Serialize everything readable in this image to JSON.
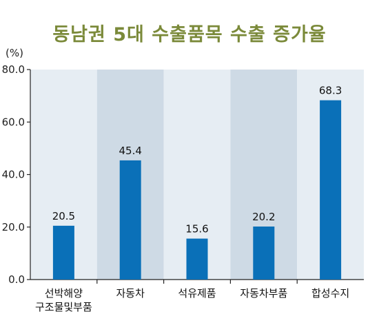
{
  "chart_data": {
    "type": "bar",
    "title": "동남권 5대 수출품목 수출 증가율",
    "ylabel": "(%)",
    "xlabel": "",
    "categories": [
      [
        "선박해양",
        "구조물및부품"
      ],
      [
        "자동차"
      ],
      [
        "석유제품"
      ],
      [
        "자동차부품"
      ],
      [
        "합성수지"
      ]
    ],
    "values": [
      20.5,
      45.4,
      15.6,
      20.2,
      68.3
    ],
    "value_labels": [
      "20.5",
      "45.4",
      "15.6",
      "20.2",
      "68.3"
    ],
    "ylim": [
      0,
      80
    ],
    "yticks": [
      0,
      20,
      40,
      60,
      80
    ],
    "ytick_labels": [
      "0.0",
      "20.0",
      "40.0",
      "60.0",
      "80.0"
    ],
    "grid": false,
    "legend": "none"
  },
  "colors": {
    "bar": "#0a70b8",
    "band_light": "#e6edf3",
    "band_dark": "#cedae5",
    "title": "#7b8a3a",
    "axis": "#222222"
  }
}
